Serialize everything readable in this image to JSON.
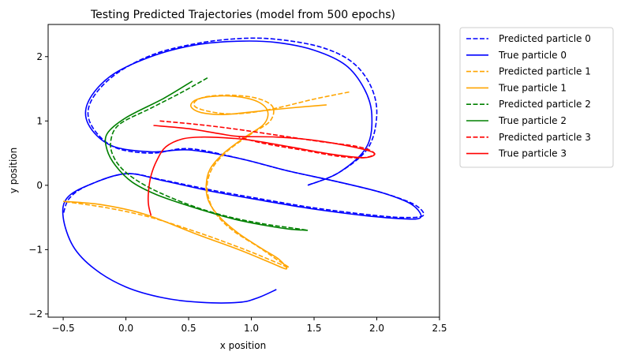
{
  "chart_data": {
    "type": "line",
    "title": "Testing Predicted Trajectories (model from 500 epochs)",
    "xlabel": "x position",
    "ylabel": "y position",
    "xlim": [
      -0.62,
      2.5
    ],
    "ylim": [
      -2.05,
      2.5
    ],
    "xticks": [
      -0.5,
      0.0,
      0.5,
      1.0,
      1.5,
      2.0,
      2.5
    ],
    "xtick_labels": [
      "−0.5",
      "0.0",
      "0.5",
      "1.0",
      "1.5",
      "2.0",
      "2.5"
    ],
    "yticks": [
      -2,
      -1,
      0,
      1,
      2
    ],
    "ytick_labels": [
      "−2",
      "−1",
      "0",
      "1",
      "2"
    ],
    "grid": false,
    "legend_position": "outside-right",
    "series": [
      {
        "name": "Predicted particle 0",
        "color": "#0000ff",
        "style": "dashed",
        "points": [
          [
            1.45,
            0.0
          ],
          [
            1.7,
            0.2
          ],
          [
            1.93,
            0.58
          ],
          [
            2.0,
            1.1
          ],
          [
            1.95,
            1.55
          ],
          [
            1.8,
            1.92
          ],
          [
            1.55,
            2.15
          ],
          [
            1.2,
            2.27
          ],
          [
            0.9,
            2.28
          ],
          [
            0.55,
            2.2
          ],
          [
            0.2,
            2.02
          ],
          [
            -0.1,
            1.7
          ],
          [
            -0.28,
            1.3
          ],
          [
            -0.28,
            0.95
          ],
          [
            -0.1,
            0.6
          ],
          [
            0.2,
            0.5
          ],
          [
            0.5,
            0.57
          ],
          [
            0.9,
            0.42
          ],
          [
            1.3,
            0.22
          ],
          [
            1.7,
            0.05
          ],
          [
            2.05,
            -0.12
          ],
          [
            2.3,
            -0.3
          ],
          [
            2.37,
            -0.47
          ],
          [
            2.2,
            -0.5
          ],
          [
            1.9,
            -0.45
          ],
          [
            1.5,
            -0.35
          ],
          [
            1.1,
            -0.22
          ],
          [
            0.7,
            -0.08
          ],
          [
            0.3,
            0.08
          ],
          [
            0.0,
            0.18
          ],
          [
            -0.3,
            0.0
          ],
          [
            -0.45,
            -0.2
          ],
          [
            -0.5,
            -0.45
          ]
        ]
      },
      {
        "name": "True particle 0",
        "color": "#0000ff",
        "style": "solid",
        "points": [
          [
            1.45,
            0.0
          ],
          [
            1.7,
            0.2
          ],
          [
            1.92,
            0.6
          ],
          [
            1.96,
            1.1
          ],
          [
            1.9,
            1.5
          ],
          [
            1.75,
            1.87
          ],
          [
            1.5,
            2.1
          ],
          [
            1.2,
            2.22
          ],
          [
            0.9,
            2.24
          ],
          [
            0.55,
            2.18
          ],
          [
            0.2,
            2.0
          ],
          [
            -0.12,
            1.7
          ],
          [
            -0.3,
            1.3
          ],
          [
            -0.3,
            0.95
          ],
          [
            -0.12,
            0.62
          ],
          [
            0.2,
            0.52
          ],
          [
            0.5,
            0.55
          ],
          [
            0.9,
            0.42
          ],
          [
            1.3,
            0.22
          ],
          [
            1.7,
            0.05
          ],
          [
            2.05,
            -0.12
          ],
          [
            2.28,
            -0.3
          ],
          [
            2.35,
            -0.5
          ],
          [
            2.2,
            -0.52
          ],
          [
            1.9,
            -0.47
          ],
          [
            1.5,
            -0.37
          ],
          [
            1.1,
            -0.24
          ],
          [
            0.7,
            -0.1
          ],
          [
            0.3,
            0.07
          ],
          [
            0.0,
            0.18
          ],
          [
            -0.3,
            0.0
          ],
          [
            -0.47,
            -0.2
          ],
          [
            -0.5,
            -0.5
          ],
          [
            -0.42,
            -0.95
          ],
          [
            -0.25,
            -1.3
          ],
          [
            0.0,
            -1.58
          ],
          [
            0.3,
            -1.75
          ],
          [
            0.6,
            -1.82
          ],
          [
            0.9,
            -1.82
          ],
          [
            1.05,
            -1.75
          ],
          [
            1.2,
            -1.62
          ]
        ]
      },
      {
        "name": "Predicted particle 1",
        "color": "#ffa500",
        "style": "dashed",
        "points": [
          [
            1.78,
            1.45
          ],
          [
            1.5,
            1.34
          ],
          [
            1.2,
            1.2
          ],
          [
            0.95,
            1.12
          ],
          [
            0.75,
            1.12
          ],
          [
            0.57,
            1.2
          ],
          [
            0.55,
            1.3
          ],
          [
            0.65,
            1.38
          ],
          [
            0.85,
            1.4
          ],
          [
            1.05,
            1.35
          ],
          [
            1.17,
            1.22
          ],
          [
            1.15,
            1.0
          ],
          [
            1.0,
            0.8
          ],
          [
            0.82,
            0.55
          ],
          [
            0.7,
            0.3
          ],
          [
            0.65,
            0.05
          ],
          [
            0.66,
            -0.2
          ],
          [
            0.72,
            -0.45
          ],
          [
            0.85,
            -0.7
          ],
          [
            1.05,
            -0.95
          ],
          [
            1.2,
            -1.15
          ],
          [
            1.3,
            -1.28
          ],
          [
            1.2,
            -1.2
          ],
          [
            0.95,
            -1.0
          ],
          [
            0.6,
            -0.75
          ],
          [
            0.2,
            -0.5
          ],
          [
            -0.15,
            -0.35
          ],
          [
            -0.5,
            -0.25
          ]
        ]
      },
      {
        "name": "True particle 1",
        "color": "#ffa500",
        "style": "solid",
        "points": [
          [
            1.6,
            1.25
          ],
          [
            1.3,
            1.2
          ],
          [
            1.0,
            1.14
          ],
          [
            0.78,
            1.1
          ],
          [
            0.6,
            1.13
          ],
          [
            0.52,
            1.22
          ],
          [
            0.55,
            1.32
          ],
          [
            0.68,
            1.38
          ],
          [
            0.88,
            1.38
          ],
          [
            1.05,
            1.3
          ],
          [
            1.13,
            1.15
          ],
          [
            1.1,
            0.95
          ],
          [
            0.95,
            0.75
          ],
          [
            0.78,
            0.5
          ],
          [
            0.67,
            0.25
          ],
          [
            0.64,
            0.0
          ],
          [
            0.66,
            -0.25
          ],
          [
            0.75,
            -0.5
          ],
          [
            0.9,
            -0.75
          ],
          [
            1.08,
            -0.98
          ],
          [
            1.22,
            -1.15
          ],
          [
            1.28,
            -1.3
          ],
          [
            1.15,
            -1.2
          ],
          [
            0.9,
            -1.0
          ],
          [
            0.55,
            -0.75
          ],
          [
            0.15,
            -0.45
          ],
          [
            -0.2,
            -0.3
          ],
          [
            -0.5,
            -0.25
          ]
        ]
      },
      {
        "name": "Predicted particle 2",
        "color": "#008000",
        "style": "dashed",
        "points": [
          [
            0.65,
            1.67
          ],
          [
            0.45,
            1.45
          ],
          [
            0.2,
            1.2
          ],
          [
            -0.05,
            0.95
          ],
          [
            -0.12,
            0.7
          ],
          [
            -0.1,
            0.45
          ],
          [
            0.0,
            0.2
          ],
          [
            0.2,
            -0.05
          ],
          [
            0.5,
            -0.3
          ],
          [
            0.8,
            -0.48
          ],
          [
            1.1,
            -0.6
          ],
          [
            1.35,
            -0.67
          ],
          [
            1.45,
            -0.7
          ]
        ]
      },
      {
        "name": "True particle 2",
        "color": "#008000",
        "style": "solid",
        "points": [
          [
            0.53,
            1.62
          ],
          [
            0.3,
            1.35
          ],
          [
            0.0,
            1.05
          ],
          [
            -0.15,
            0.8
          ],
          [
            -0.15,
            0.55
          ],
          [
            -0.08,
            0.3
          ],
          [
            0.05,
            0.05
          ],
          [
            0.25,
            -0.15
          ],
          [
            0.55,
            -0.35
          ],
          [
            0.85,
            -0.52
          ],
          [
            1.1,
            -0.62
          ],
          [
            1.3,
            -0.68
          ],
          [
            1.45,
            -0.7
          ]
        ]
      },
      {
        "name": "Predicted particle 3",
        "color": "#ff0000",
        "style": "dashed",
        "points": [
          [
            0.27,
            1.0
          ],
          [
            0.55,
            0.95
          ],
          [
            0.85,
            0.88
          ],
          [
            1.2,
            0.78
          ],
          [
            1.55,
            0.68
          ],
          [
            1.85,
            0.6
          ],
          [
            1.98,
            0.5
          ],
          [
            1.9,
            0.43
          ],
          [
            1.7,
            0.45
          ],
          [
            1.4,
            0.55
          ],
          [
            1.1,
            0.65
          ],
          [
            0.9,
            0.75
          ]
        ]
      },
      {
        "name": "True particle 3",
        "color": "#ff0000",
        "style": "solid",
        "points": [
          [
            0.22,
            0.93
          ],
          [
            0.5,
            0.88
          ],
          [
            0.75,
            0.8
          ],
          [
            0.9,
            0.76
          ],
          [
            1.2,
            0.75
          ],
          [
            1.5,
            0.7
          ],
          [
            1.8,
            0.6
          ],
          [
            1.98,
            0.5
          ],
          [
            1.9,
            0.43
          ],
          [
            1.65,
            0.48
          ],
          [
            1.3,
            0.6
          ],
          [
            1.0,
            0.7
          ],
          [
            0.85,
            0.73
          ],
          [
            0.62,
            0.75
          ],
          [
            0.45,
            0.72
          ],
          [
            0.32,
            0.6
          ],
          [
            0.25,
            0.4
          ],
          [
            0.2,
            0.15
          ],
          [
            0.18,
            -0.1
          ],
          [
            0.18,
            -0.3
          ],
          [
            0.2,
            -0.47
          ]
        ]
      }
    ]
  }
}
